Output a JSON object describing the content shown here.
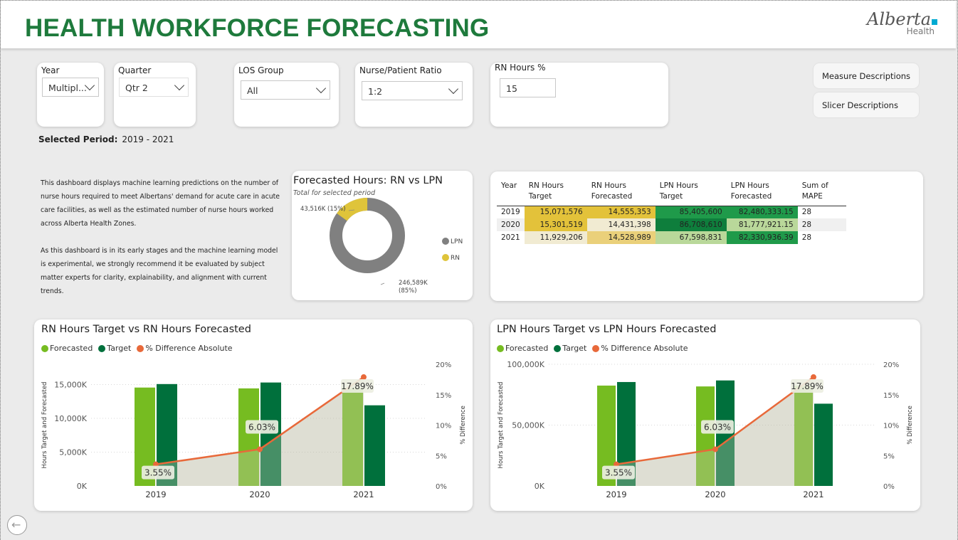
{
  "header": {
    "title": "HEALTH WORKFORCE FORECASTING",
    "logo_main": "Alberta",
    "logo_sub": "Health"
  },
  "slicers": {
    "year": {
      "label": "Year",
      "value": "Multipl..."
    },
    "quarter": {
      "label": "Quarter",
      "value": "Qtr 2"
    },
    "los": {
      "label": "LOS Group",
      "value": "All"
    },
    "ratio": {
      "label": "Nurse/Patient Ratio",
      "value": "1:2"
    },
    "rn_hours": {
      "label": "RN Hours %",
      "value": "15"
    }
  },
  "buttons": {
    "measure": "Measure Descriptions",
    "slicer": "Slicer Descriptions"
  },
  "selected_period": {
    "label": "Selected Period:",
    "value": "2019 - 2021"
  },
  "description": {
    "p1": "This dashboard displays machine learning predictions on the number of nurse hours required to meet Albertans' demand for acute care in acute care facilities, as well as the estimated number of nurse hours worked across Alberta Health Zones.",
    "p2": "As this dashboard is in its early stages and the machine learning model is experimental, we strongly recommend it be evaluated by subject matter experts for clarity, explainability, and alignment with current trends."
  },
  "donut": {
    "title": "Forecasted Hours: RN vs LPN",
    "subtitle": "Total for selected period",
    "rn_label": "43,516K (15%)",
    "lpn_label_1": "246,589K",
    "lpn_label_2": "(85%)",
    "legend_lpn": "LPN",
    "legend_rn": "RN",
    "colors": {
      "lpn": "#808080",
      "rn": "#dfc43a"
    }
  },
  "matrix": {
    "headers": [
      "Year",
      "RN Hours Target",
      "RN Hours Forecasted",
      "LPN Hours Target",
      "LPN Hours Forecasted",
      "Sum of MAPE"
    ],
    "rows": [
      [
        "2019",
        "15,071,576",
        "14,555,353",
        "85,405,600",
        "82,480,333.15",
        "28"
      ],
      [
        "2020",
        "15,301,519",
        "14,431,398",
        "86,708,610",
        "81,777,921.15",
        "28"
      ],
      [
        "2021",
        "11,929,206",
        "14,528,989",
        "67,598,831",
        "82,330,936.39",
        "28"
      ]
    ]
  },
  "chart_data": [
    {
      "type": "bar",
      "title": "RN Hours Target vs RN Hours Forecasted",
      "categories": [
        "2019",
        "2020",
        "2021"
      ],
      "series": [
        {
          "name": "Forecasted",
          "values": [
            14555,
            14431,
            14529
          ]
        },
        {
          "name": "Target",
          "values": [
            15072,
            15302,
            11929
          ]
        },
        {
          "name": "% Difference Absolute",
          "values": [
            3.55,
            6.03,
            17.89
          ]
        }
      ],
      "ylabel": "Hours Target and Forecasted",
      "y2label": "% Difference",
      "yticks": [
        "0K",
        "5,000K",
        "10,000K",
        "15,000K"
      ],
      "y2ticks": [
        "0%",
        "5%",
        "10%",
        "15%",
        "20%"
      ],
      "ylim": [
        0,
        18000
      ],
      "y2lim": [
        0,
        20
      ],
      "data_labels": [
        "3.55%",
        "6.03%",
        "17.89%"
      ],
      "legend": "top-left"
    },
    {
      "type": "bar",
      "title": "LPN Hours Target vs LPN Hours Forecasted",
      "categories": [
        "2019",
        "2020",
        "2021"
      ],
      "series": [
        {
          "name": "Forecasted",
          "values": [
            82480,
            81778,
            82331
          ]
        },
        {
          "name": "Target",
          "values": [
            85406,
            86709,
            67599
          ]
        },
        {
          "name": "% Difference Absolute",
          "values": [
            3.55,
            6.03,
            17.89
          ]
        }
      ],
      "ylabel": "Hours Target and Forecasted",
      "y2label": "% Difference",
      "yticks": [
        "0K",
        "50,000K",
        "100,000K"
      ],
      "y2ticks": [
        "0%",
        "5%",
        "10%",
        "15%",
        "20%"
      ],
      "ylim": [
        0,
        100000
      ],
      "y2lim": [
        0,
        20
      ],
      "data_labels": [
        "3.55%",
        "6.03%",
        "17.89%"
      ],
      "legend": "top-left"
    }
  ],
  "colors": {
    "forecasted": "#76bc21",
    "target": "#00703c",
    "diff": "#e8693a",
    "rn_yellow": "#e3c23a"
  }
}
